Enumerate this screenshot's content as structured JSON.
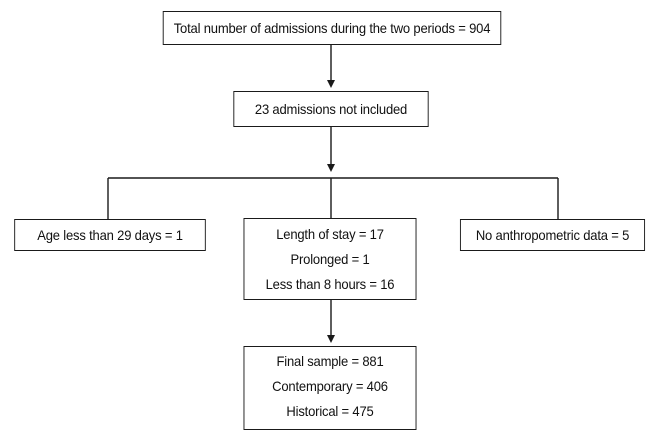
{
  "flowchart": {
    "total_admissions": "Total number of admissions during the two periods = 904",
    "not_included": "23 admissions not included",
    "age_exclusion": "Age less than 29 days = 1",
    "length_of_stay": {
      "title": "Length of stay = 17",
      "prolonged": "Prolonged = 1",
      "less_than_8_hours": "Less than 8 hours = 16"
    },
    "anthropometric_exclusion": "No anthropometric data = 5",
    "final_sample": {
      "title": "Final sample = 881",
      "contemporary": "Contemporary = 406",
      "historical": "Historical = 475"
    }
  },
  "colors": {
    "stroke": "#1a1a1a",
    "background": "#ffffff",
    "text": "#111111"
  }
}
